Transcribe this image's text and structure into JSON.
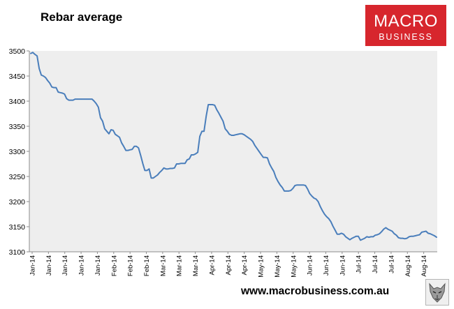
{
  "header": {
    "title": "Rebar average"
  },
  "logo": {
    "line1": "MACRO",
    "line2": "BUSINESS",
    "color": "#d7262d",
    "text_color": "#ffffff"
  },
  "footer": {
    "url": "www.macrobusiness.com.au"
  },
  "badge": {
    "icon": "wolf-head-icon"
  },
  "colors": {
    "plot_background": "#eeeeee",
    "series_line": "#4a7ebb",
    "axis": "#8c8c8c",
    "text": "#000000"
  },
  "chart_data": {
    "type": "line",
    "title": "Rebar average",
    "xlabel": "",
    "ylabel": "",
    "ylim": [
      3100,
      3500
    ],
    "yticks": [
      3100,
      3150,
      3200,
      3250,
      3300,
      3350,
      3400,
      3450,
      3500
    ],
    "grid": false,
    "legend": "none",
    "x_tick_labels": [
      "Jan-14",
      "Jan-14",
      "Jan-14",
      "Jan-14",
      "Jan-14",
      "Feb-14",
      "Feb-14",
      "Feb-14",
      "Mar-14",
      "Mar-14",
      "Mar-14",
      "Apr-14",
      "Apr-14",
      "Apr-14",
      "May-14",
      "May-14",
      "May-14",
      "Jun-14",
      "Jun-14",
      "Jun-14",
      "Jul-14",
      "Jul-14",
      "Jul-14",
      "Aug-14",
      "Aug-14"
    ],
    "series": [
      {
        "values": [
          3495,
          3497,
          3493,
          3490,
          3465,
          3452,
          3450,
          3447,
          3441,
          3436,
          3428,
          3427,
          3427,
          3418,
          3417,
          3416,
          3414,
          3405,
          3402,
          3402,
          3402,
          3404,
          3404,
          3404,
          3404,
          3404,
          3404,
          3404,
          3404,
          3404,
          3400,
          3395,
          3388,
          3367,
          3360,
          3345,
          3340,
          3335,
          3343,
          3342,
          3334,
          3331,
          3328,
          3317,
          3310,
          3302,
          3302,
          3303,
          3304,
          3310,
          3310,
          3307,
          3292,
          3276,
          3262,
          3262,
          3265,
          3247,
          3247,
          3250,
          3253,
          3258,
          3262,
          3267,
          3265,
          3265,
          3266,
          3266,
          3267,
          3275,
          3275,
          3276,
          3276,
          3276,
          3283,
          3285,
          3293,
          3293,
          3295,
          3298,
          3330,
          3340,
          3340,
          3370,
          3393,
          3393,
          3393,
          3392,
          3383,
          3376,
          3368,
          3360,
          3345,
          3340,
          3334,
          3332,
          3332,
          3333,
          3334,
          3335,
          3335,
          3333,
          3330,
          3327,
          3324,
          3320,
          3312,
          3306,
          3300,
          3294,
          3288,
          3288,
          3287,
          3275,
          3267,
          3260,
          3248,
          3240,
          3233,
          3228,
          3221,
          3221,
          3221,
          3222,
          3226,
          3232,
          3233,
          3233,
          3233,
          3233,
          3232,
          3225,
          3216,
          3211,
          3207,
          3205,
          3200,
          3190,
          3182,
          3175,
          3170,
          3166,
          3160,
          3151,
          3143,
          3135,
          3135,
          3137,
          3135,
          3130,
          3127,
          3124,
          3127,
          3129,
          3131,
          3131,
          3123,
          3125,
          3127,
          3130,
          3129,
          3130,
          3130,
          3133,
          3134,
          3136,
          3140,
          3145,
          3148,
          3145,
          3143,
          3141,
          3136,
          3133,
          3128,
          3127,
          3127,
          3126,
          3127,
          3130,
          3131,
          3131,
          3132,
          3133,
          3134,
          3139,
          3140,
          3141,
          3137,
          3136,
          3134,
          3132,
          3129
        ]
      }
    ]
  }
}
